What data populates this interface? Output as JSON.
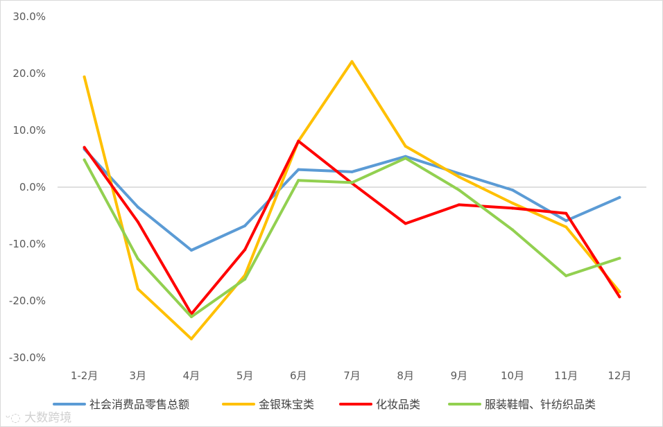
{
  "chart_data": {
    "type": "line",
    "categories": [
      "1-2月",
      "3月",
      "4月",
      "5月",
      "6月",
      "7月",
      "8月",
      "9月",
      "10月",
      "11月",
      "12月"
    ],
    "ylim": [
      -30,
      30
    ],
    "yticks": [
      "30.0%",
      "20.0%",
      "10.0%",
      "0.0%",
      "-10.0%",
      "-20.0%",
      "-30.0%"
    ],
    "grid": false,
    "legend_position": "bottom",
    "series": [
      {
        "name": "社会消费品零售总额",
        "color": "#5b9bd5",
        "values": [
          6.7,
          -3.5,
          -11.1,
          -6.8,
          3.1,
          2.7,
          5.4,
          2.4,
          -0.5,
          -5.9,
          -1.8
        ]
      },
      {
        "name": "金银珠宝类",
        "color": "#ffc000",
        "values": [
          19.4,
          -17.9,
          -26.7,
          -15.5,
          8.1,
          22.1,
          7.2,
          1.8,
          -2.8,
          -7.0,
          -18.4
        ]
      },
      {
        "name": "化妆品类",
        "color": "#ff0000",
        "values": [
          7.0,
          -6.1,
          -22.3,
          -11.0,
          8.1,
          0.7,
          -6.4,
          -3.1,
          -3.7,
          -4.6,
          -19.3
        ]
      },
      {
        "name": "服装鞋帽、针纺织品类",
        "color": "#92d050",
        "values": [
          4.8,
          -12.6,
          -22.8,
          -16.2,
          1.2,
          0.8,
          5.1,
          -0.5,
          -7.5,
          -15.6,
          -12.5
        ]
      }
    ]
  },
  "watermark": "大数跨境"
}
